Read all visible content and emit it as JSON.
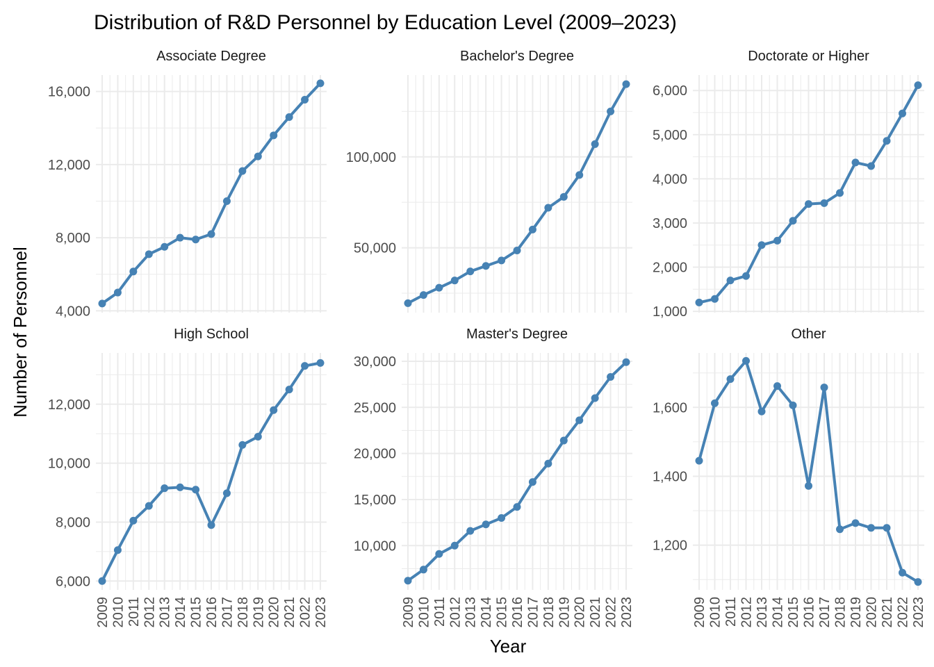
{
  "chart_data": {
    "type": "line",
    "title": "Distribution of R&D Personnel by Education Level (2009–2023)",
    "xlabel": "Year",
    "ylabel": "Number of Personnel",
    "grid": true,
    "legend": "none",
    "series_color": "#4682B4",
    "x": [
      2009,
      2010,
      2011,
      2012,
      2013,
      2014,
      2015,
      2016,
      2017,
      2018,
      2019,
      2020,
      2021,
      2022,
      2023
    ],
    "panels": [
      {
        "name": "Associate Degree",
        "values": [
          4400,
          5000,
          6150,
          7100,
          7500,
          8000,
          7900,
          8200,
          10000,
          11650,
          12450,
          13600,
          14600,
          15550,
          16450
        ],
        "ylim": [
          3900,
          16900
        ],
        "yticks": [
          4000,
          8000,
          12000,
          16000
        ],
        "yticklabels": [
          "4,000",
          "8,000",
          "12,000",
          "16,000"
        ]
      },
      {
        "name": "Bachelor's Degree",
        "values": [
          19500,
          24000,
          28000,
          32000,
          37000,
          40000,
          43000,
          48500,
          60000,
          72000,
          78000,
          90000,
          107000,
          125000,
          140000
        ],
        "ylim": [
          14300,
          145000
        ],
        "yticks": [
          50000,
          100000
        ],
        "yticklabels": [
          "50,000",
          "100,000"
        ]
      },
      {
        "name": "Doctorate or Higher",
        "values": [
          1200,
          1280,
          1700,
          1800,
          2500,
          2600,
          3050,
          3430,
          3450,
          3680,
          4370,
          4290,
          4860,
          5480,
          6120
        ],
        "ylim": [
          970,
          6350
        ],
        "yticks": [
          1000,
          2000,
          3000,
          4000,
          5000,
          6000
        ],
        "yticklabels": [
          "1,000",
          "2,000",
          "3,000",
          "4,000",
          "5,000",
          "6,000"
        ]
      },
      {
        "name": "High School",
        "values": [
          6000,
          7050,
          8050,
          8550,
          9150,
          9180,
          9100,
          7900,
          8980,
          10620,
          10900,
          11800,
          12500,
          13300,
          13400
        ],
        "ylim": [
          5700,
          13740
        ],
        "yticks": [
          6000,
          8000,
          10000,
          12000
        ],
        "yticklabels": [
          "6,000",
          "8,000",
          "10,000",
          "12,000"
        ]
      },
      {
        "name": "Master's Degree",
        "values": [
          6200,
          7400,
          9100,
          10000,
          11600,
          12300,
          13000,
          14200,
          16900,
          18900,
          21400,
          23600,
          26000,
          28300,
          29900
        ],
        "ylim": [
          5200,
          30900
        ],
        "yticks": [
          10000,
          15000,
          20000,
          25000,
          30000
        ],
        "yticklabels": [
          "10,000",
          "15,000",
          "20,000",
          "25,000",
          "30,000"
        ]
      },
      {
        "name": "Other",
        "values": [
          1445,
          1612,
          1682,
          1735,
          1588,
          1662,
          1606,
          1372,
          1658,
          1246,
          1264,
          1250,
          1250,
          1120,
          1093
        ],
        "ylim": [
          1070,
          1758
        ],
        "yticks": [
          1200,
          1400,
          1600
        ],
        "yticklabels": [
          "1,200",
          "1,400",
          "1,600"
        ]
      }
    ]
  }
}
